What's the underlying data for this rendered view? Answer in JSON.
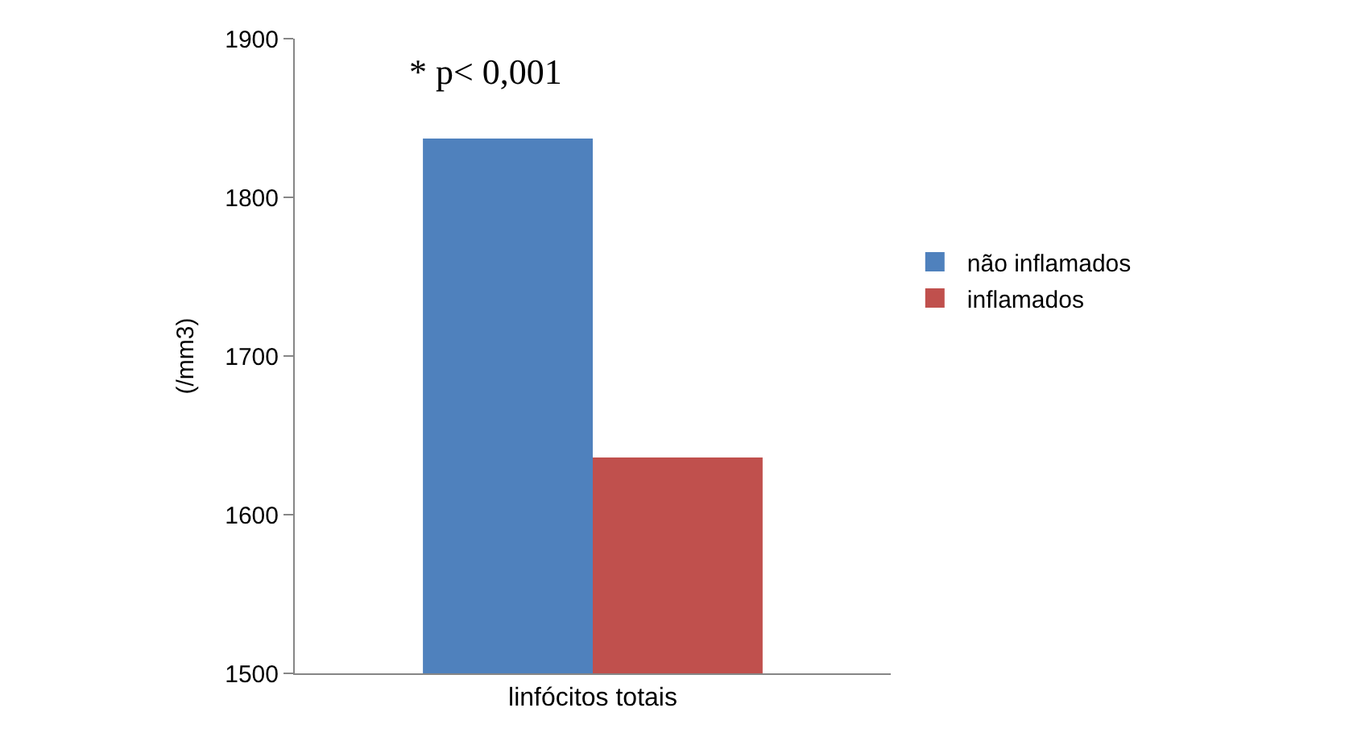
{
  "chart_data": {
    "type": "bar",
    "categories": [
      "linfócitos totais"
    ],
    "ylabel": "(/mm3)",
    "series": [
      {
        "name": "não inflamados",
        "color": "#4f81bd",
        "values": [
          1837
        ]
      },
      {
        "name": "inflamados",
        "color": "#c0504d",
        "values": [
          1636
        ]
      }
    ],
    "ylim": [
      1500,
      1900
    ],
    "yticks": [
      1500,
      1600,
      1700,
      1800,
      1900
    ],
    "annotations": [
      "* p< 0,001"
    ],
    "legend": "right"
  }
}
